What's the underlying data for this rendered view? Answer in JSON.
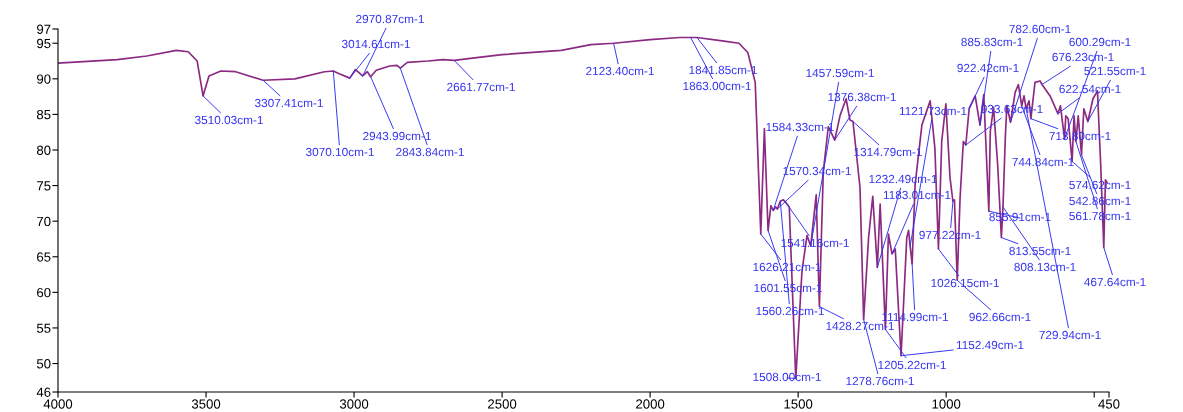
{
  "chart_data": {
    "type": "line",
    "color": "#8b2a80",
    "x": [
      4000,
      3800,
      3700,
      3600,
      3560,
      3530,
      3510.03,
      3490,
      3450,
      3400,
      3307.41,
      3200,
      3100,
      3070.1,
      3050,
      3014.61,
      2995,
      2970.87,
      2955,
      2943.99,
      2925,
      2880,
      2855,
      2843.84,
      2820,
      2750,
      2700,
      2661.77,
      2600,
      2500,
      2300,
      2200,
      2123.4,
      2000,
      1900,
      1863.0,
      1841.85,
      1750,
      1700,
      1670,
      1645,
      1626.21,
      1614,
      1601.55,
      1592,
      1584.33,
      1576,
      1570.34,
      1560.26,
      1550,
      1541.16,
      1530,
      1508.0,
      1487,
      1470,
      1457.59,
      1439,
      1428.27,
      1415,
      1398,
      1376.38,
      1358,
      1338,
      1325,
      1314.79,
      1291,
      1278.76,
      1262,
      1248,
      1232.49,
      1223,
      1205.22,
      1195,
      1183.01,
      1172,
      1152.49,
      1133,
      1127,
      1121.73,
      1114.99,
      1105,
      1082,
      1054,
      1038,
      1026.15,
      1015,
      1001,
      987,
      977.22,
      972,
      962.66,
      953,
      942,
      933.63,
      922.42,
      902,
      885.83,
      873,
      855.91,
      851,
      840,
      826,
      813.55,
      808.13,
      800,
      795,
      782.6,
      767,
      756,
      744.84,
      737,
      729.94,
      720,
      713.8,
      700,
      683,
      676.23,
      649,
      622.54,
      614,
      600.29,
      596,
      588,
      574.62,
      568,
      561.78,
      554,
      542.86,
      535,
      521.55,
      504,
      489,
      478,
      467.64,
      462,
      457
    ],
    "values": [
      92.2,
      92.7,
      93.2,
      94.0,
      93.8,
      92.5,
      87.6,
      90.4,
      91.1,
      91.0,
      89.8,
      90.0,
      91.0,
      91.1,
      90.7,
      90.1,
      91.3,
      90.4,
      91.0,
      90.3,
      91.2,
      91.8,
      91.9,
      91.5,
      92.3,
      92.5,
      92.7,
      92.6,
      92.9,
      93.4,
      94.0,
      94.8,
      95.0,
      95.5,
      95.8,
      95.8,
      95.8,
      95.3,
      95.0,
      93.7,
      89.5,
      68.2,
      83.0,
      68.7,
      72.2,
      71.5,
      72.0,
      71.7,
      72.8,
      73.0,
      72.6,
      72.0,
      47.9,
      63.0,
      68.0,
      66.5,
      73.7,
      58.0,
      77.0,
      83.3,
      81.4,
      84.9,
      87.2,
      84.2,
      84.0,
      74.7,
      56.2,
      67.7,
      73.5,
      63.5,
      72.4,
      54.8,
      68.2,
      65.4,
      66.1,
      51.1,
      67.7,
      68.7,
      66.5,
      64.0,
      75.1,
      83.5,
      86.9,
      80.2,
      66.1,
      81.2,
      86.5,
      76.1,
      72.8,
      73.0,
      61.7,
      73.3,
      81.2,
      80.7,
      85.8,
      87.6,
      83.5,
      87.8,
      71.4,
      82.6,
      86.0,
      77.9,
      67.7,
      72.0,
      82.0,
      86.2,
      83.9,
      88.1,
      89.2,
      86.2,
      87.6,
      85.8,
      86.9,
      84.4,
      89.5,
      89.7,
      89.2,
      87.6,
      85.1,
      86.2,
      81.6,
      84.8,
      84.4,
      78.4,
      84.8,
      81.2,
      84.8,
      79.3,
      85.8,
      84.0,
      87.2,
      88.3,
      77.9,
      66.3,
      75.8,
      75.5
    ],
    "xlim": [
      4000,
      450
    ],
    "ylim": [
      46,
      97
    ],
    "xticks": [
      4000,
      3500,
      3000,
      2500,
      2000,
      1500,
      1000,
      {
        "value": 500,
        "label": null
      },
      450
    ],
    "yticks": [
      46,
      50,
      55,
      60,
      65,
      70,
      75,
      80,
      85,
      90,
      95,
      97
    ],
    "grid": false,
    "annotations": [
      {
        "text": "3510.03cm-1",
        "x": 3510.03,
        "y": 87.6
      },
      {
        "text": "3307.41cm-1",
        "x": 3307.41,
        "y": 89.8
      },
      {
        "text": "3070.10cm-1",
        "x": 3070.1,
        "y": 91.1
      },
      {
        "text": "3014.61cm-1",
        "x": 3014.61,
        "y": 90.1
      },
      {
        "text": "2970.87cm-1",
        "x": 2970.87,
        "y": 90.4
      },
      {
        "text": "2943.99cm-1",
        "x": 2943.99,
        "y": 90.3
      },
      {
        "text": "2843.84cm-1",
        "x": 2843.84,
        "y": 91.5
      },
      {
        "text": "2661.77cm-1",
        "x": 2661.77,
        "y": 92.6
      },
      {
        "text": "2123.40cm-1",
        "x": 2123.4,
        "y": 95.0
      },
      {
        "text": "1863.00cm-1",
        "x": 1863.0,
        "y": 95.8
      },
      {
        "text": "1841.85cm-1",
        "x": 1841.85,
        "y": 95.8
      },
      {
        "text": "1626.21cm-1",
        "x": 1626.21,
        "y": 68.2
      },
      {
        "text": "1601.55cm-1",
        "x": 1601.55,
        "y": 68.7
      },
      {
        "text": "1584.33cm-1",
        "x": 1584.33,
        "y": 71.5
      },
      {
        "text": "1570.34cm-1",
        "x": 1570.34,
        "y": 71.7
      },
      {
        "text": "1560.26cm-1",
        "x": 1560.26,
        "y": 72.8
      },
      {
        "text": "1541.16cm-1",
        "x": 1541.16,
        "y": 72.6
      },
      {
        "text": "1508.00cm-1",
        "x": 1508.0,
        "y": 47.9
      },
      {
        "text": "1457.59cm-1",
        "x": 1457.59,
        "y": 66.5
      },
      {
        "text": "1428.27cm-1",
        "x": 1428.27,
        "y": 58.0
      },
      {
        "text": "1376.38cm-1",
        "x": 1376.38,
        "y": 81.4
      },
      {
        "text": "1314.79cm-1",
        "x": 1314.79,
        "y": 84.0
      },
      {
        "text": "1278.76cm-1",
        "x": 1278.76,
        "y": 56.2
      },
      {
        "text": "1232.49cm-1",
        "x": 1232.49,
        "y": 63.5
      },
      {
        "text": "1205.22cm-1",
        "x": 1205.22,
        "y": 54.8
      },
      {
        "text": "1183.01cm-1",
        "x": 1183.01,
        "y": 65.4
      },
      {
        "text": "1152.49cm-1",
        "x": 1152.49,
        "y": 51.1
      },
      {
        "text": "1121.73cm-1",
        "x": 1121.73,
        "y": 66.5
      },
      {
        "text": "1114.99cm-1",
        "x": 1114.99,
        "y": 64.0
      },
      {
        "text": "1026.15cm-1",
        "x": 1026.15,
        "y": 66.1
      },
      {
        "text": "977.22cm-1",
        "x": 977.22,
        "y": 72.8
      },
      {
        "text": "962.66cm-1",
        "x": 962.66,
        "y": 61.7
      },
      {
        "text": "933.63cm-1",
        "x": 933.63,
        "y": 80.7
      },
      {
        "text": "922.42cm-1",
        "x": 922.42,
        "y": 85.8
      },
      {
        "text": "885.83cm-1",
        "x": 885.83,
        "y": 83.5
      },
      {
        "text": "855.91cm-1",
        "x": 855.91,
        "y": 71.4
      },
      {
        "text": "813.55cm-1",
        "x": 813.55,
        "y": 67.7
      },
      {
        "text": "808.13cm-1",
        "x": 808.13,
        "y": 72.0
      },
      {
        "text": "782.60cm-1",
        "x": 782.6,
        "y": 83.9
      },
      {
        "text": "744.84cm-1",
        "x": 744.84,
        "y": 86.2
      },
      {
        "text": "729.94cm-1",
        "x": 729.94,
        "y": 85.8
      },
      {
        "text": "713.80cm-1",
        "x": 713.8,
        "y": 84.4
      },
      {
        "text": "676.23cm-1",
        "x": 676.23,
        "y": 89.2
      },
      {
        "text": "622.54cm-1",
        "x": 622.54,
        "y": 85.1
      },
      {
        "text": "600.29cm-1",
        "x": 600.29,
        "y": 81.6
      },
      {
        "text": "574.62cm-1",
        "x": 574.62,
        "y": 78.4
      },
      {
        "text": "561.78cm-1",
        "x": 561.78,
        "y": 81.2
      },
      {
        "text": "542.86cm-1",
        "x": 542.86,
        "y": 79.3
      },
      {
        "text": "521.55cm-1",
        "x": 521.55,
        "y": 84.0
      },
      {
        "text": "467.64cm-1",
        "x": 467.64,
        "y": 66.3
      }
    ]
  }
}
